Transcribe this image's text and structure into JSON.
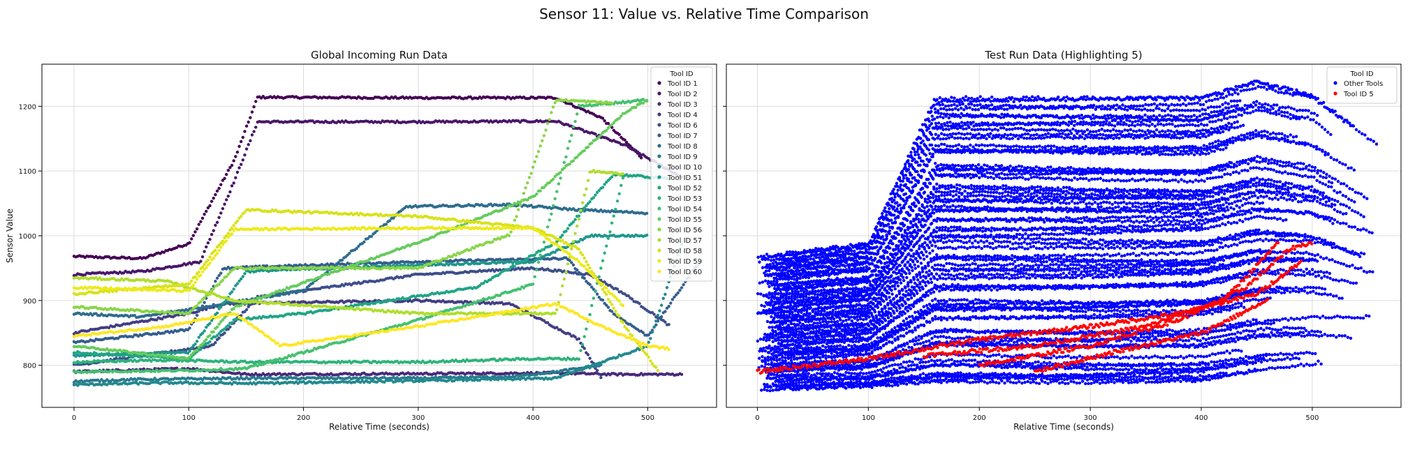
{
  "figure": {
    "suptitle": "Sensor 11: Value vs. Relative Time Comparison"
  },
  "chart_data": [
    {
      "type": "scatter",
      "title": "Global Incoming Run Data",
      "xlabel": "Relative Time (seconds)",
      "ylabel": "Sensor Value",
      "xlim": [
        -28,
        560
      ],
      "ylim": [
        735,
        1265
      ],
      "xticks": [
        0,
        100,
        200,
        300,
        400,
        500
      ],
      "yticks": [
        800,
        900,
        1000,
        1100,
        1200
      ],
      "grid": true,
      "legend": {
        "title": "Tool ID",
        "placement": "top-right"
      },
      "series": [
        {
          "name": "Tool ID 1",
          "color": "#440154",
          "x": [
            0,
            60,
            100,
            140,
            160,
            300,
            420,
            460,
            495
          ],
          "y": [
            968,
            965,
            988,
            1118,
            1214,
            1213,
            1213,
            1182,
            1120
          ]
        },
        {
          "name": "Tool ID 2",
          "color": "#481769",
          "x": [
            0,
            60,
            110,
            140,
            160,
            300,
            420,
            480,
            530
          ],
          "y": [
            940,
            945,
            960,
            1086,
            1176,
            1176,
            1177,
            1140,
            1090
          ]
        },
        {
          "name": "Tool ID 3",
          "color": "#472a7a",
          "x": [
            0,
            100,
            150,
            300,
            420,
            470,
            530
          ],
          "y": [
            790,
            795,
            786,
            787,
            788,
            786,
            786
          ]
        },
        {
          "name": "Tool ID 4",
          "color": "#433d84",
          "x": [
            0,
            100,
            130,
            300,
            380,
            440,
            460
          ],
          "y": [
            850,
            880,
            895,
            900,
            895,
            840,
            780
          ]
        },
        {
          "name": "Tool ID 6",
          "color": "#3d4e8a",
          "x": [
            0,
            120,
            160,
            300,
            400,
            450,
            480,
            520
          ],
          "y": [
            800,
            830,
            905,
            940,
            950,
            940,
            910,
            860
          ]
        },
        {
          "name": "Tool ID 7",
          "color": "#355e8d",
          "x": [
            0,
            100,
            130,
            300,
            430,
            470,
            500,
            545
          ],
          "y": [
            835,
            855,
            950,
            960,
            965,
            880,
            845,
            960
          ]
        },
        {
          "name": "Tool ID 8",
          "color": "#2e6d8e",
          "x": [
            0,
            60,
            200,
            290,
            380,
            440,
            500
          ],
          "y": [
            880,
            875,
            915,
            1045,
            1048,
            1040,
            1035
          ]
        },
        {
          "name": "Tool ID 9",
          "color": "#297b8e",
          "x": [
            0,
            50,
            150,
            300,
            380,
            420,
            460
          ],
          "y": [
            775,
            778,
            780,
            780,
            782,
            790,
            800
          ]
        },
        {
          "name": "Tool ID 10",
          "color": "#23898e",
          "x": [
            0,
            80,
            150,
            300,
            420,
            500,
            530
          ],
          "y": [
            770,
            773,
            772,
            776,
            780,
            830,
            990
          ]
        },
        {
          "name": "Tool ID 51",
          "color": "#1f978b",
          "x": [
            0,
            100,
            150,
            300,
            400,
            450,
            500
          ],
          "y": [
            815,
            820,
            945,
            955,
            960,
            1000,
            1000
          ]
        },
        {
          "name": "Tool ID 52",
          "color": "#21a585",
          "x": [
            0,
            100,
            140,
            200,
            350,
            420,
            470,
            520
          ],
          "y": [
            820,
            810,
            870,
            880,
            920,
            990,
            1095,
            1088
          ]
        },
        {
          "name": "Tool ID 53",
          "color": "#2eb37c",
          "x": [
            0,
            80,
            150,
            300,
            400,
            440,
            480
          ],
          "y": [
            805,
            808,
            805,
            805,
            810,
            810,
            1100
          ]
        },
        {
          "name": "Tool ID 54",
          "color": "#46c06f",
          "x": [
            0,
            100,
            150,
            300,
            400,
            440,
            500
          ],
          "y": [
            790,
            792,
            795,
            870,
            925,
            1200,
            1210
          ]
        },
        {
          "name": "Tool ID 55",
          "color": "#65cb5e",
          "x": [
            0,
            100,
            140,
            300,
            400,
            480,
            500
          ],
          "y": [
            830,
            810,
            890,
            990,
            1060,
            1190,
            1210
          ]
        },
        {
          "name": "Tool ID 56",
          "color": "#89d548",
          "x": [
            0,
            100,
            140,
            300,
            380,
            420,
            470
          ],
          "y": [
            890,
            880,
            950,
            950,
            1002,
            1210,
            1205
          ]
        },
        {
          "name": "Tool ID 57",
          "color": "#b0dd2f",
          "x": [
            0,
            80,
            140,
            300,
            420,
            450,
            480
          ],
          "y": [
            935,
            930,
            900,
            880,
            880,
            1100,
            1095
          ]
        },
        {
          "name": "Tool ID 58",
          "color": "#d8e219",
          "x": [
            0,
            100,
            150,
            300,
            400,
            440,
            480,
            510
          ],
          "y": [
            910,
            925,
            1040,
            1030,
            1012,
            980,
            860,
            790
          ]
        },
        {
          "name": "Tool ID 59",
          "color": "#edea1a",
          "x": [
            0,
            100,
            140,
            300,
            400,
            440,
            480
          ],
          "y": [
            920,
            915,
            1010,
            1012,
            1012,
            960,
            890
          ]
        },
        {
          "name": "Tool ID 60",
          "color": "#fde725",
          "x": [
            0,
            80,
            140,
            180,
            300,
            420,
            460,
            500,
            520
          ],
          "y": [
            845,
            860,
            880,
            830,
            860,
            895,
            860,
            830,
            825
          ]
        }
      ]
    },
    {
      "type": "scatter",
      "title": "Test Run Data (Highlighting 5)",
      "xlabel": "Relative Time (seconds)",
      "ylabel": "",
      "xlim": [
        -28,
        580
      ],
      "ylim": [
        735,
        1265
      ],
      "xticks": [
        0,
        100,
        200,
        300,
        400,
        500
      ],
      "yticks": [
        800,
        900,
        1000,
        1100,
        1200
      ],
      "grid": true,
      "legend": {
        "title": "Tool ID",
        "placement": "top-right"
      },
      "series": [
        {
          "name": "Other Tools",
          "color": "#0000ff",
          "band": {
            "x": [
              0,
              100,
              160,
              300,
              400,
              450,
              500,
              560
            ],
            "ymin": [
              760,
              765,
              770,
              770,
              775,
              790,
              800,
              810
            ],
            "ymax": [
              970,
              990,
              1215,
              1215,
              1215,
              1240,
              1220,
              1140
            ]
          }
        },
        {
          "name": "Tool ID 5",
          "color": "#ff0000",
          "lines": [
            {
              "x": [
                0,
                100,
                150,
                200,
                300,
                380,
                450,
                490
              ],
              "y": [
                790,
                810,
                825,
                840,
                860,
                880,
                910,
                960
              ]
            },
            {
              "x": [
                150,
                250,
                350,
                420,
                470
              ],
              "y": [
                815,
                830,
                860,
                900,
                990
              ]
            },
            {
              "x": [
                200,
                300,
                380,
                440,
                480,
                500
              ],
              "y": [
                800,
                830,
                870,
                920,
                980,
                990
              ]
            },
            {
              "x": [
                250,
                320,
                400,
                460
              ],
              "y": [
                790,
                820,
                850,
                900
              ]
            }
          ]
        }
      ]
    }
  ]
}
